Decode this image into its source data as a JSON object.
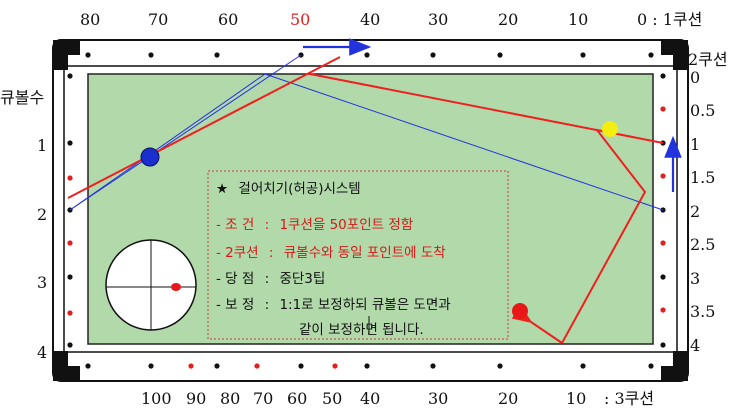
{
  "top_scale": {
    "labels": [
      "80",
      "70",
      "60",
      "50",
      "40",
      "30",
      "20",
      "10"
    ],
    "corner": "0 : 1쿠션",
    "highlight": "50"
  },
  "bottom_scale": {
    "labels": [
      "100",
      "90",
      "80",
      "70",
      "60",
      "50",
      "40",
      "30",
      "20",
      "10"
    ],
    "corner": ": 3쿠션"
  },
  "left_scale": {
    "title": "큐볼수",
    "labels": [
      "1",
      "2",
      "3",
      "4"
    ]
  },
  "right_scale": {
    "title": "2쿠션",
    "labels": [
      "0",
      "0.5",
      "1",
      "1.5",
      "2",
      "2.5",
      "3",
      "3.5",
      "4"
    ]
  },
  "legend": {
    "star": "★",
    "title": "걸어치기(허공)시스템",
    "rows": [
      {
        "key": "- 조 건",
        "sep": ":",
        "text": "1쿠션을 50포인트 정함"
      },
      {
        "key": "- 2쿠션",
        "sep": ":",
        "text": "큐볼수와 동일 포인트에 도착"
      },
      {
        "key": "- 당 점",
        "sep": ":",
        "text": "중단3팁"
      },
      {
        "key": "- 보 정",
        "sep": ":",
        "text": "1:1로 보정하되 큐볼은 도면과"
      }
    ],
    "continuation": "같이 보정하면 됩니다."
  },
  "colors": {
    "cloth": "#b2d9aa",
    "rail": "#ffffff",
    "frame": "#111111",
    "red_path": "#ee2020",
    "blue_path": "#2233dd",
    "cue_ball": "#1a2fd0",
    "yellow_ball": "#f4ee10",
    "red_ball": "#e81818"
  }
}
